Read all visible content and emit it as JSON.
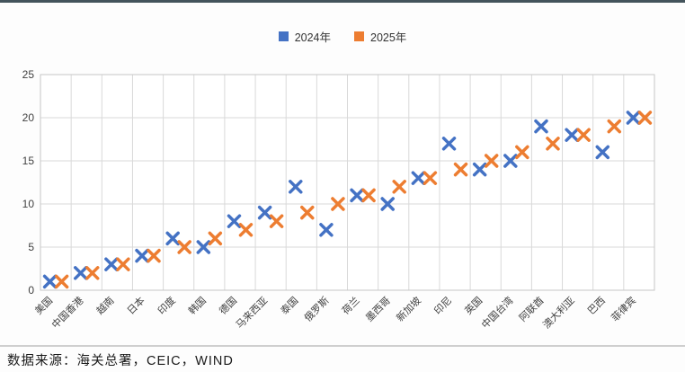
{
  "page": {
    "top_bar_color": "#44545c",
    "caption": "数据来源：海关总署，CEIC，WIND"
  },
  "chart_data": {
    "type": "scatter",
    "marker": "x",
    "title": "",
    "xlabel": "",
    "ylabel": "",
    "categories": [
      "美国",
      "中国香港",
      "越南",
      "日本",
      "印度",
      "韩国",
      "德国",
      "马来西亚",
      "泰国",
      "俄罗斯",
      "荷兰",
      "墨西哥",
      "新加坡",
      "印尼",
      "英国",
      "中国台湾",
      "阿联酋",
      "澳大利亚",
      "巴西",
      "菲律宾"
    ],
    "series": [
      {
        "name": "2024年",
        "color": "#4472C4",
        "values": [
          1,
          2,
          3,
          4,
          6,
          5,
          8,
          9,
          12,
          7,
          11,
          10,
          13,
          17,
          14,
          15,
          19,
          18,
          16,
          20
        ]
      },
      {
        "name": "2025年",
        "color": "#ED7D31",
        "values": [
          1,
          2,
          3,
          4,
          5,
          6,
          7,
          8,
          9,
          10,
          11,
          12,
          13,
          14,
          15,
          16,
          17,
          18,
          19,
          20
        ]
      }
    ],
    "ylim": [
      0,
      25
    ],
    "y_ticks": [
      0,
      5,
      10,
      15,
      20,
      25
    ],
    "grid": true,
    "grid_color": "#d9d9d9",
    "legend_position": "top-center"
  }
}
